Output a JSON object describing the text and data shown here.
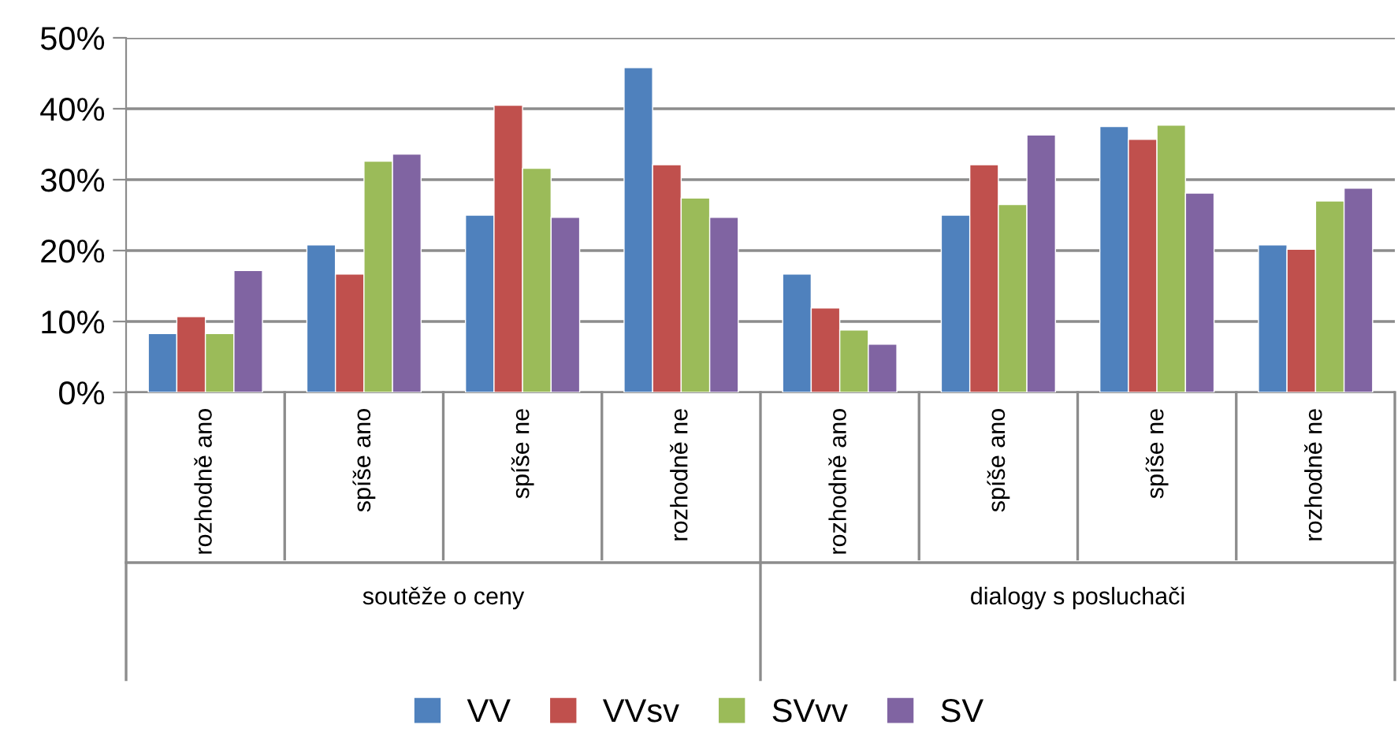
{
  "chart_data": {
    "type": "bar",
    "categories": [
      "rozhodně ano",
      "spíše ano",
      "spíše ne",
      "rozhodně ne",
      "rozhodně ano",
      "spíše ano",
      "spíše ne",
      "rozhodně ne"
    ],
    "series": [
      {
        "name": "VV",
        "color": "#4f81bd",
        "values": [
          8.3,
          20.8,
          25.0,
          45.8,
          16.7,
          25.0,
          37.5,
          20.8
        ]
      },
      {
        "name": "VVsv",
        "color": "#c0504d",
        "values": [
          10.7,
          16.7,
          40.5,
          32.1,
          11.9,
          32.1,
          35.7,
          20.2
        ]
      },
      {
        "name": "SVvv",
        "color": "#9bbb59",
        "values": [
          8.3,
          32.6,
          31.6,
          27.4,
          8.8,
          26.5,
          37.7,
          27.0
        ]
      },
      {
        "name": "SV",
        "color": "#8064a2",
        "values": [
          17.2,
          33.6,
          24.7,
          24.7,
          6.8,
          36.3,
          28.1,
          28.8
        ]
      }
    ],
    "annotations": [
      "soutěže o ceny",
      "dialogy s posluchači"
    ],
    "ylim": [
      0,
      50
    ],
    "yticks": [
      {
        "value": 0,
        "label": "0%"
      },
      {
        "value": 10,
        "label": "10%"
      },
      {
        "value": 20,
        "label": "20%"
      },
      {
        "value": 30,
        "label": "30%"
      },
      {
        "value": 40,
        "label": "40%"
      },
      {
        "value": 50,
        "label": "50%"
      }
    ],
    "grid": "y",
    "legend": "bottom"
  }
}
